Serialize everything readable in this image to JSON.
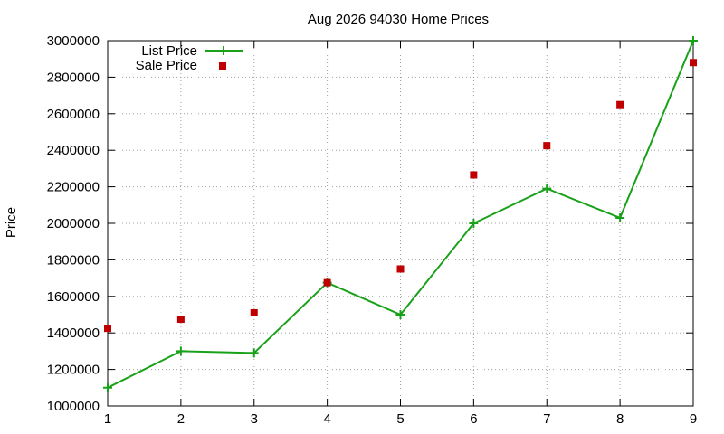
{
  "chart_data": {
    "type": "line",
    "title": "Aug 2026 94030 Home Prices",
    "xlabel": "",
    "ylabel": "Price",
    "x": [
      1,
      2,
      3,
      4,
      5,
      6,
      7,
      8,
      9
    ],
    "xlim": [
      1,
      9
    ],
    "ylim": [
      1000000,
      3000000
    ],
    "x_ticks": [
      "1",
      "2",
      "3",
      "4",
      "5",
      "6",
      "7",
      "8",
      "9"
    ],
    "y_ticks": [
      "1000000",
      "1200000",
      "1400000",
      "1600000",
      "1800000",
      "2000000",
      "2200000",
      "2400000",
      "2600000",
      "2800000",
      "3000000"
    ],
    "grid": true,
    "legend_position": "top-left",
    "series": [
      {
        "name": "List Price",
        "style": "line-with-plus-markers",
        "color": "#1aa11a",
        "values": [
          1100000,
          1300000,
          1290000,
          1675000,
          1500000,
          2000000,
          2190000,
          2030000,
          3000000
        ]
      },
      {
        "name": "Sale Price",
        "style": "square-points",
        "color": "#c00000",
        "values": [
          1425000,
          1475000,
          1510000,
          1675000,
          1750000,
          2265000,
          2425000,
          2650000,
          2880000
        ]
      }
    ]
  }
}
